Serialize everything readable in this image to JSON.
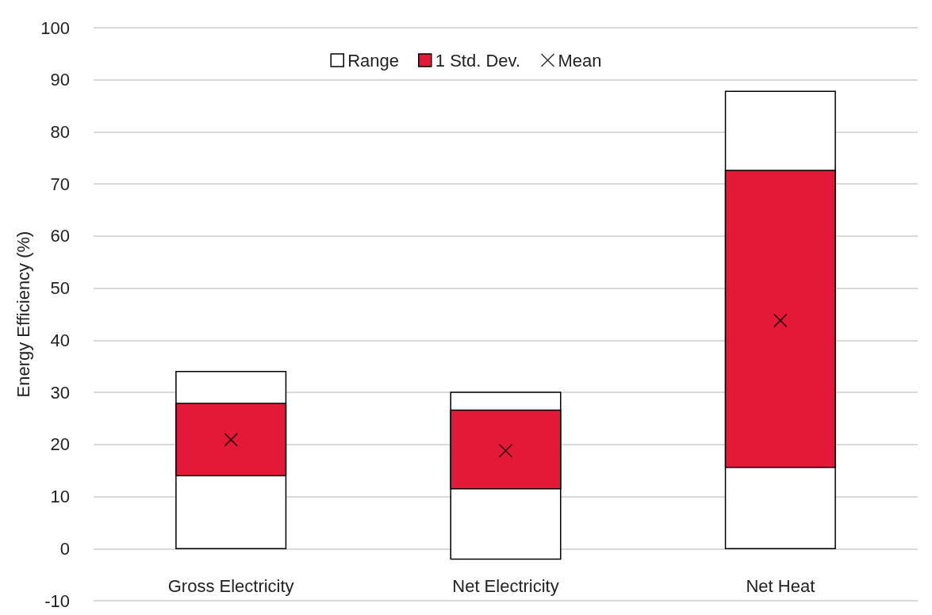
{
  "chart_data": {
    "type": "bar",
    "ylabel": "Energy Efficiency (%)",
    "categories": [
      "Gross Electricity",
      "Net Electricity",
      "Net Heat"
    ],
    "series": [
      {
        "name": "Range",
        "color": "#ffffff",
        "base": [
          0,
          -2,
          0
        ],
        "values": [
          34,
          32,
          87.8
        ]
      },
      {
        "name": "1 Std. Dev.",
        "color": "#e31937",
        "base": [
          14,
          11.5,
          15.6
        ],
        "values": [
          13.9,
          15.1,
          57
        ]
      },
      {
        "name": "Mean",
        "type": "scatter",
        "marker": "cross",
        "color": "#000000",
        "x": [
          "Gross Electricity",
          "Net Electricity",
          "Net Heat"
        ],
        "values": [
          20.9,
          18.8,
          43.8
        ]
      }
    ],
    "ylim": [
      -10,
      100
    ],
    "yticks": [
      -10,
      0,
      10,
      20,
      30,
      40,
      50,
      60,
      70,
      80,
      90,
      100
    ],
    "grid": "y",
    "legend": "top"
  }
}
